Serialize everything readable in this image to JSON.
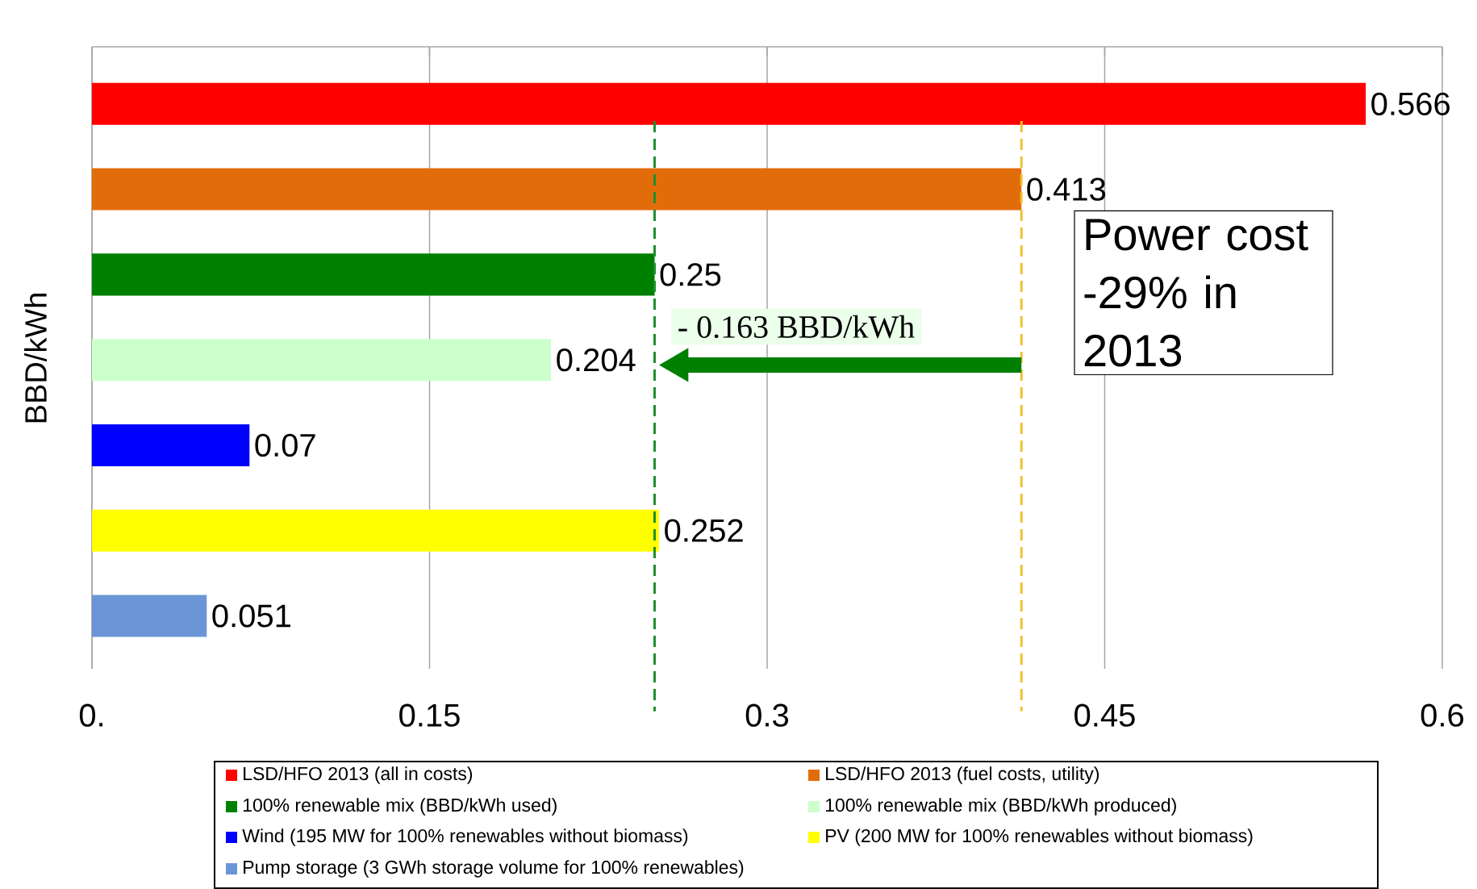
{
  "chart_data": {
    "type": "bar",
    "orientation": "horizontal",
    "ylabel": "BBD/kWh",
    "categories": [
      null,
      null,
      null,
      null,
      null,
      null,
      null
    ],
    "series": [
      {
        "name": "LSD/HFO 2013 (all in costs)",
        "color": "#ff0000",
        "values": [
          0.566,
          null,
          null,
          null,
          null,
          null,
          null
        ]
      },
      {
        "name": "LSD/HFO 2013 (fuel costs, utility)",
        "color": "#e36c0a",
        "values": [
          null,
          0.413,
          null,
          null,
          null,
          null,
          null
        ]
      },
      {
        "name": "100% renewable mix (BBD/kWh used)",
        "color": "#008000",
        "values": [
          null,
          null,
          0.25,
          null,
          null,
          null,
          null
        ]
      },
      {
        "name": "100% renewable mix (BBD/kWh produced)",
        "color": "#ccffcc",
        "values": [
          null,
          null,
          null,
          0.204,
          null,
          null,
          null
        ]
      },
      {
        "name": "Wind (195 MW for 100% renewables without biomass)",
        "color": "#0000ff",
        "values": [
          null,
          null,
          null,
          null,
          0.07,
          null,
          null
        ]
      },
      {
        "name": "PV (200 MW for 100% renewables without biomass)",
        "color": "#ffff00",
        "values": [
          null,
          null,
          null,
          null,
          null,
          0.252,
          null
        ]
      },
      {
        "name": "Pump storage (3 GWh storage volume for 100% renewables)",
        "color": "#6b95d6",
        "values": [
          null,
          null,
          null,
          null,
          null,
          null,
          0.051
        ]
      }
    ],
    "xlim": [
      0,
      0.6
    ],
    "xticks": [
      {
        "value": 0,
        "label": "0."
      },
      0.15,
      0.3,
      0.45,
      0.6
    ],
    "grid": "x",
    "legend": "bottom",
    "data_labels": true,
    "ref_lines": [
      {
        "axis": "x",
        "value": 0.25,
        "color": "#1f8f2f",
        "line_style": "dashed"
      },
      {
        "axis": "x",
        "value": 0.413,
        "color": "#f0c232",
        "line_style": "dashed"
      }
    ],
    "annotations": [
      "- 0.163 BBD/kWh",
      "Power cost -29% in 2013"
    ]
  }
}
